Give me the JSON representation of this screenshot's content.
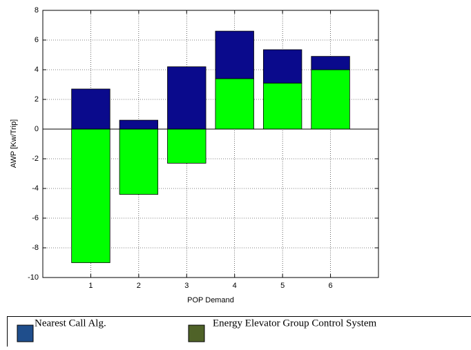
{
  "chart_data": {
    "type": "bar",
    "stacked": true,
    "xlabel": "POP Demand",
    "ylabel": "AWP [Kw/Trip]",
    "categories": [
      "1",
      "2",
      "3",
      "4",
      "5",
      "6"
    ],
    "series": [
      {
        "name": "Nearest Call Alg.",
        "color": "#0a0a8c",
        "legend_color": "#1f4e8c",
        "values": [
          2.7,
          0.6,
          4.2,
          3.2,
          2.25,
          0.9
        ]
      },
      {
        "name": "Energy Elevator Group Control System",
        "color": "#00ff00",
        "legend_color": "#4f6228",
        "values": [
          -9,
          -4.4,
          -2.3,
          3.4,
          3.1,
          4.0
        ]
      }
    ],
    "xlim": [
      0,
      7
    ],
    "ylim": [
      -10,
      8
    ],
    "yticks": [
      -10,
      -8,
      -6,
      -4,
      -2,
      0,
      2,
      4,
      6,
      8
    ],
    "grid": true
  }
}
